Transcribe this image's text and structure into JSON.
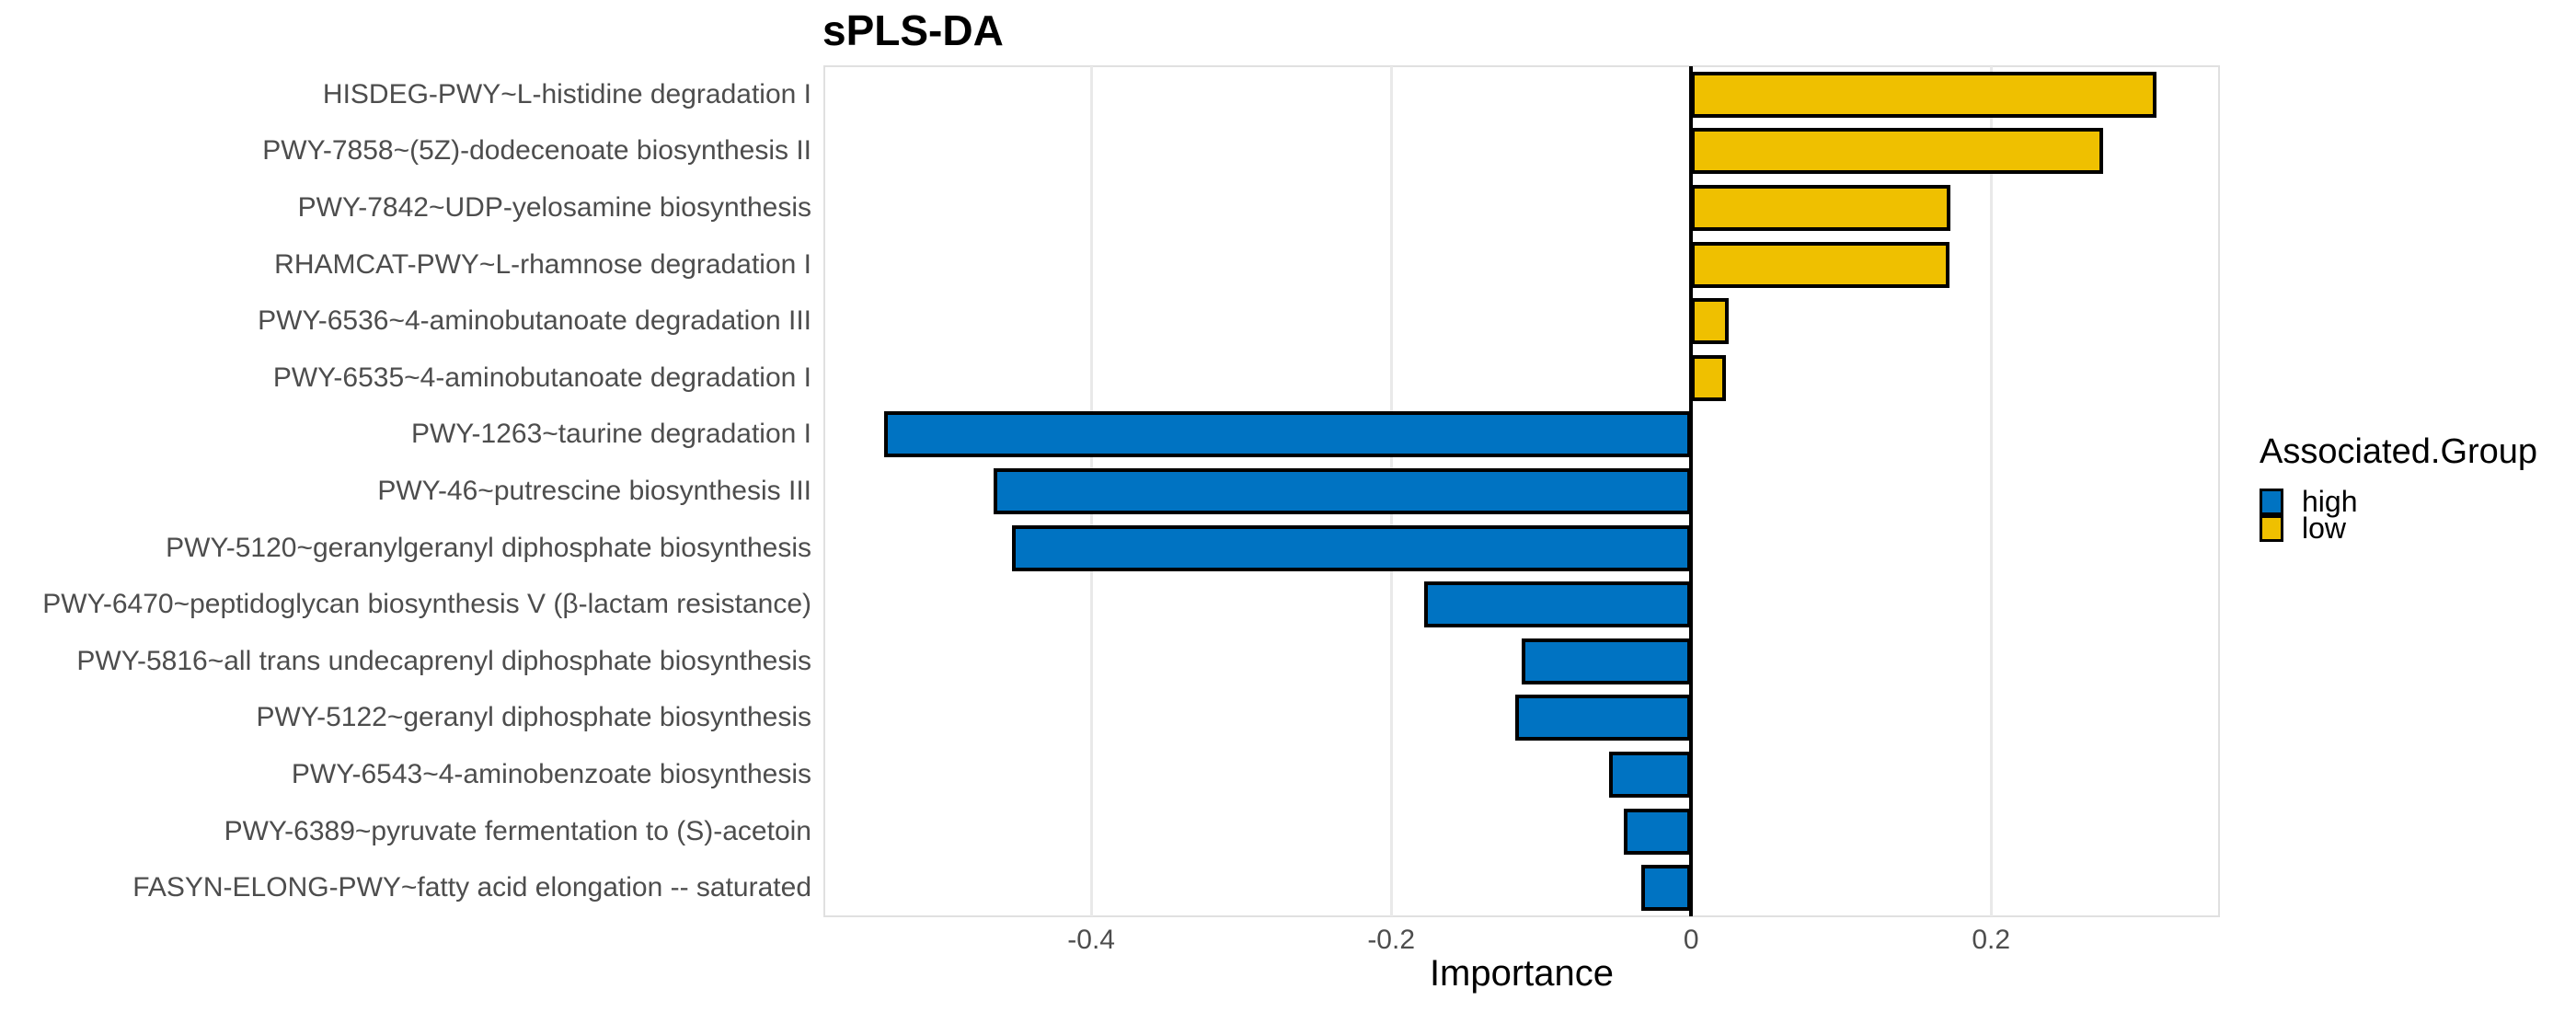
{
  "title": "sPLS-DA",
  "legend": {
    "title": "Associated.Group",
    "entries": [
      {
        "label": "high",
        "color": "#0073C2"
      },
      {
        "label": "low",
        "color": "#EFC000"
      }
    ]
  },
  "chart_data": {
    "type": "bar",
    "orientation": "horizontal",
    "title": "sPLS-DA",
    "xlabel": "Importance",
    "ylabel": "",
    "xlim": [
      -0.578,
      0.352
    ],
    "x_ticks": [
      -0.4,
      -0.2,
      0,
      0.2
    ],
    "x_tick_labels": [
      "-0.4",
      "-0.2",
      "0",
      "0.2"
    ],
    "grid": "vertical-only",
    "legend_position": "right",
    "background": "#ffffff",
    "bar_border_color": "#000000",
    "zero_line_color": "#000000",
    "axis_text_color": "#4d4d4d",
    "group_colors": {
      "high": "#0073C2",
      "low": "#EFC000"
    },
    "categories": [
      "HISDEG-PWY~L-histidine degradation I",
      "PWY-7858~(5Z)-dodecenoate biosynthesis II",
      "PWY-7842~UDP-yelosamine biosynthesis",
      "RHAMCAT-PWY~L-rhamnose degradation I",
      "PWY-6536~4-aminobutanoate degradation III",
      "PWY-6535~4-aminobutanoate degradation I",
      "PWY-1263~taurine degradation I",
      "PWY-46~putrescine biosynthesis III",
      "PWY-5120~geranylgeranyl diphosphate biosynthesis",
      "PWY-6470~peptidoglycan biosynthesis V (β-lactam resistance)",
      "PWY-5816~all trans undecaprenyl diphosphate biosynthesis",
      "PWY-5122~geranyl diphosphate biosynthesis",
      "PWY-6543~4-aminobenzoate biosynthesis",
      "PWY-6389~pyruvate fermentation to (S)-acetoin",
      "FASYN-ELONG-PWY~fatty acid elongation -- saturated"
    ],
    "values": [
      0.31,
      0.275,
      0.173,
      0.172,
      0.025,
      0.023,
      -0.538,
      -0.465,
      -0.453,
      -0.178,
      -0.113,
      -0.117,
      -0.055,
      -0.045,
      -0.033
    ],
    "groups": [
      "low",
      "low",
      "low",
      "low",
      "low",
      "low",
      "high",
      "high",
      "high",
      "high",
      "high",
      "high",
      "high",
      "high",
      "high"
    ]
  }
}
